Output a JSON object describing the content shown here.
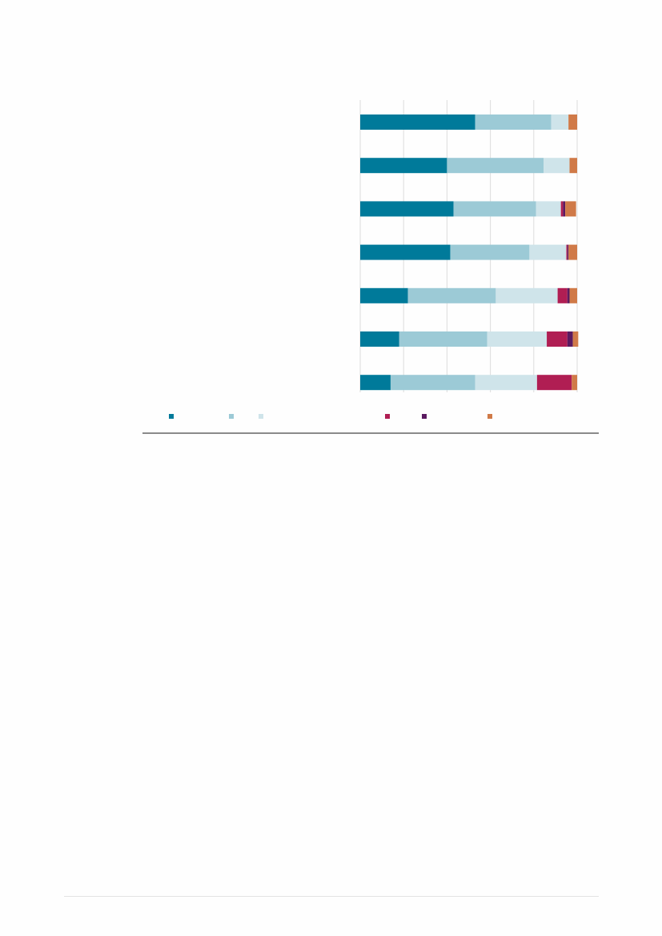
{
  "chart_data": {
    "type": "bar",
    "orientation": "horizontal",
    "stacked": true,
    "normalized_to": 100,
    "categories": [
      "",
      "",
      "",
      "",
      "",
      "",
      ""
    ],
    "series": [
      {
        "color": "#007a9a",
        "values": [
          53,
          40,
          43,
          41.5,
          22,
          18,
          14
        ]
      },
      {
        "color": "#9ccad6",
        "values": [
          35,
          44.5,
          38,
          36.5,
          40.5,
          40.5,
          39
        ]
      },
      {
        "color": "#cfe4ea",
        "values": [
          8,
          12,
          11.5,
          17,
          28.5,
          27.5,
          28.5
        ]
      },
      {
        "color": "#b01e53",
        "values": [
          0,
          0,
          1,
          0.5,
          4.5,
          9.5,
          16
        ]
      },
      {
        "color": "#5b1a60",
        "values": [
          0,
          0,
          1,
          0.5,
          1,
          2.5,
          0
        ]
      },
      {
        "color": "#d07a48",
        "values": [
          4,
          3.5,
          5,
          4,
          3.5,
          2.5,
          2.5
        ]
      }
    ],
    "xlim": [
      0,
      100
    ],
    "grid": true,
    "legend_position": "bottom"
  }
}
